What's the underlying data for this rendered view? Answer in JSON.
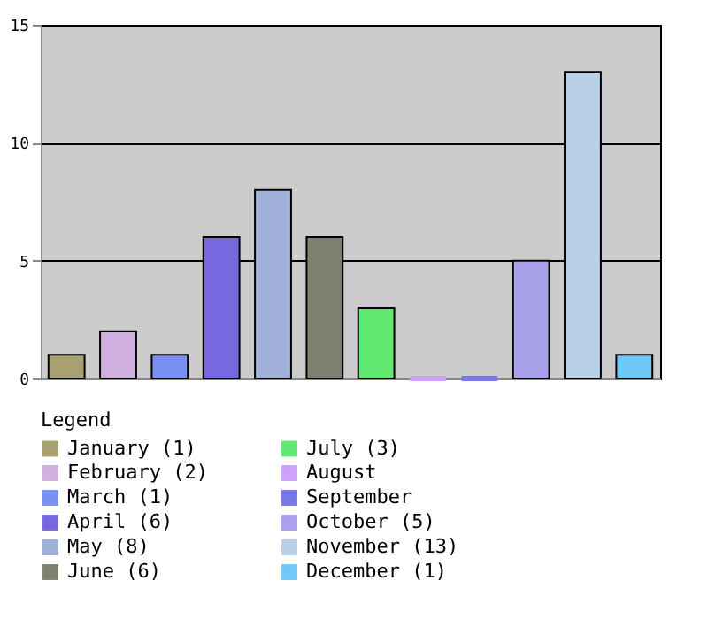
{
  "chart_data": {
    "type": "bar",
    "categories": [
      null,
      null,
      null,
      null,
      null,
      null,
      null,
      null,
      null,
      null,
      null,
      null
    ],
    "series": [
      {
        "name": "January (1)",
        "color": "#a8a070",
        "values": [
          1,
          null,
          null,
          null,
          null,
          null,
          null,
          null,
          null,
          null,
          null,
          null
        ]
      },
      {
        "name": "February (2)",
        "color": "#d0b0e0",
        "values": [
          null,
          2,
          null,
          null,
          null,
          null,
          null,
          null,
          null,
          null,
          null,
          null
        ]
      },
      {
        "name": "March (1)",
        "color": "#7890f0",
        "values": [
          null,
          null,
          1,
          null,
          null,
          null,
          null,
          null,
          null,
          null,
          null,
          null
        ]
      },
      {
        "name": "April (6)",
        "color": "#7868e0",
        "values": [
          null,
          null,
          null,
          6,
          null,
          null,
          null,
          null,
          null,
          null,
          null,
          null
        ]
      },
      {
        "name": "May (8)",
        "color": "#a0b0d8",
        "values": [
          null,
          null,
          null,
          null,
          8,
          null,
          null,
          null,
          null,
          null,
          null,
          null
        ]
      },
      {
        "name": "June (6)",
        "color": "#808070",
        "values": [
          null,
          null,
          null,
          null,
          null,
          6,
          null,
          null,
          null,
          null,
          null,
          null
        ]
      },
      {
        "name": "July (3)",
        "color": "#60e870",
        "values": [
          null,
          null,
          null,
          null,
          null,
          null,
          3,
          null,
          null,
          null,
          null,
          null
        ]
      },
      {
        "name": "August",
        "color": "#d0a0f8",
        "values": [
          null,
          null,
          null,
          null,
          null,
          null,
          null,
          0,
          null,
          null,
          null,
          null
        ]
      },
      {
        "name": "September",
        "color": "#7878e8",
        "values": [
          null,
          null,
          null,
          null,
          null,
          null,
          null,
          null,
          0,
          null,
          null,
          null
        ]
      },
      {
        "name": "October (5)",
        "color": "#a8a0e8",
        "values": [
          null,
          null,
          null,
          null,
          null,
          null,
          null,
          null,
          null,
          5,
          null,
          null
        ]
      },
      {
        "name": "November (13)",
        "color": "#b8d0e8",
        "values": [
          null,
          null,
          null,
          null,
          null,
          null,
          null,
          null,
          null,
          null,
          13,
          null
        ]
      },
      {
        "name": "December (1)",
        "color": "#70c8f8",
        "values": [
          null,
          null,
          null,
          null,
          null,
          null,
          null,
          null,
          null,
          null,
          null,
          1
        ]
      }
    ],
    "ylim": [
      0,
      15
    ],
    "yticks": [
      0,
      5,
      10,
      15
    ],
    "grid": "y",
    "tick_labels": "y",
    "legend": "bottom left",
    "legend_title": "Legend"
  }
}
